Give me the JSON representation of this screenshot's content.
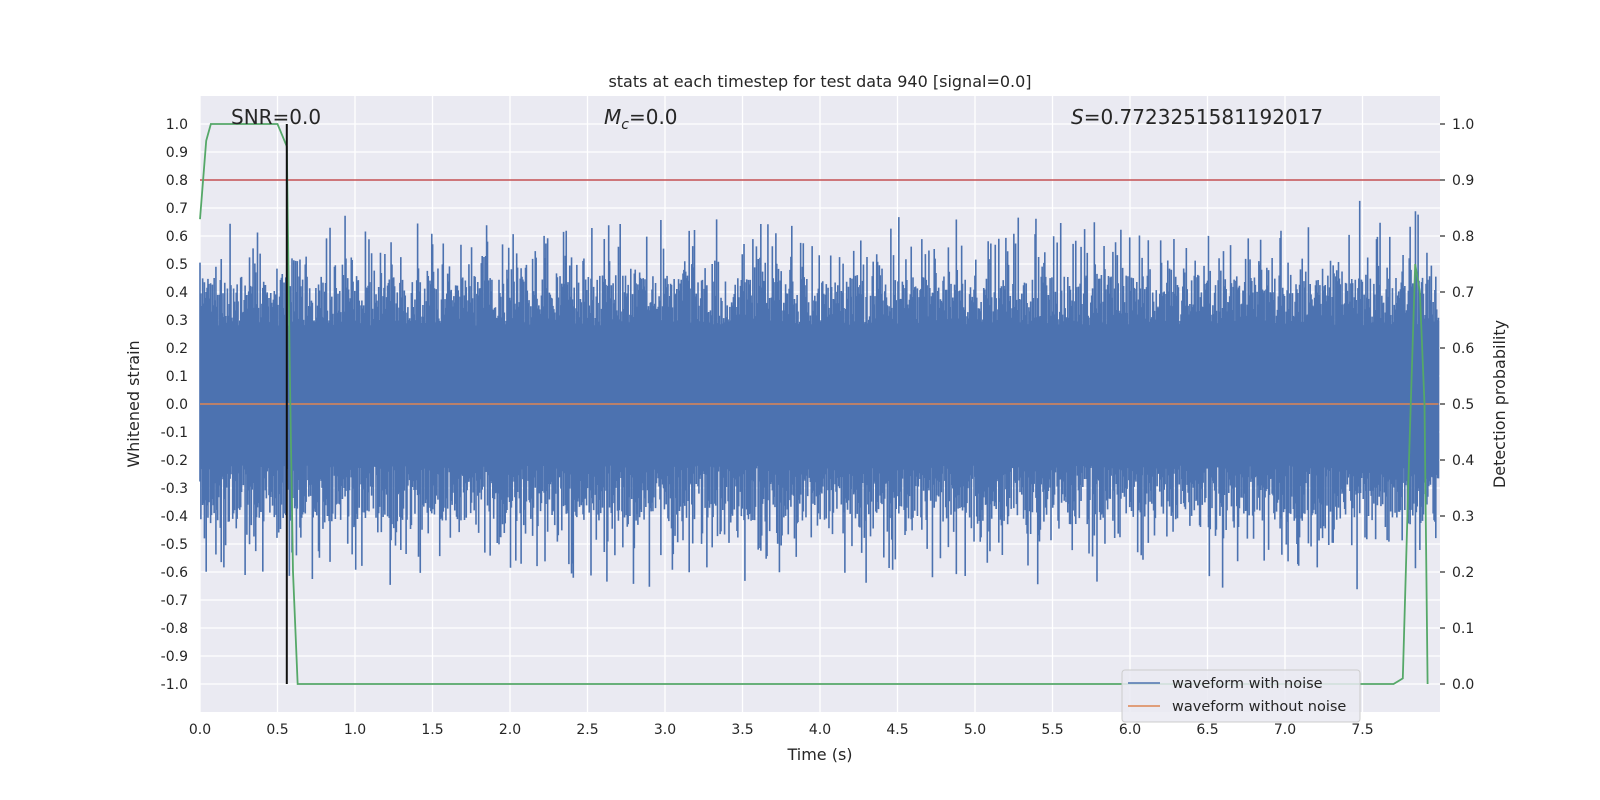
{
  "chart_data": {
    "type": "line",
    "title": "stats at each timestep for test data 940 [signal=0.0]",
    "xlabel": "Time (s)",
    "ylabel": "Whitened strain",
    "ylabel_right": "Detection probability",
    "xlim": [
      0.0,
      8.0
    ],
    "ylim": [
      -1.1,
      1.1
    ],
    "ylim_right": [
      -0.05,
      1.05
    ],
    "xticks": [
      "0.0",
      "0.5",
      "1.0",
      "1.5",
      "2.0",
      "2.5",
      "3.0",
      "3.5",
      "4.0",
      "4.5",
      "5.0",
      "5.5",
      "6.0",
      "6.5",
      "7.0",
      "7.5"
    ],
    "yticks": [
      "1.0",
      "0.9",
      "0.8",
      "0.7",
      "0.6",
      "0.5",
      "0.4",
      "0.3",
      "0.2",
      "0.1",
      "0.0",
      "-0.1",
      "-0.2",
      "-0.3",
      "-0.4",
      "-0.5",
      "-0.6",
      "-0.7",
      "-0.8",
      "-0.9",
      "-1.0"
    ],
    "yticks_right": [
      "1.0",
      "0.9",
      "0.8",
      "0.7",
      "0.6",
      "0.5",
      "0.4",
      "0.3",
      "0.2",
      "0.1",
      "0.0"
    ],
    "grid": true,
    "legend_position": "bottom-right",
    "annotations": {
      "snr": "SNR=0.0",
      "mc": "=0.0",
      "mc_symbol": "M",
      "mc_subscript": "c",
      "s": "=0.7723251581192017",
      "s_symbol": "S"
    },
    "series": [
      {
        "name": "waveform with noise",
        "color": "#4c72b0",
        "axis": "left",
        "style": "noise-strain"
      },
      {
        "name": "waveform without noise",
        "color": "#dd8452",
        "axis": "left",
        "values": [
          0.0,
          0.0
        ]
      },
      {
        "color": "#55a868",
        "axis": "right",
        "x": [
          0.0,
          0.04,
          0.07,
          0.12,
          0.25,
          0.4,
          0.5,
          0.53,
          0.56,
          0.58,
          0.6,
          0.63,
          0.7,
          1.0,
          2.0,
          3.0,
          4.0,
          5.0,
          6.0,
          7.0,
          7.5,
          7.7,
          7.76,
          7.8,
          7.84,
          7.87,
          7.9,
          7.92
        ],
        "y": [
          0.83,
          0.97,
          1.0,
          1.0,
          1.0,
          1.0,
          1.0,
          0.98,
          0.96,
          0.55,
          0.2,
          0.0,
          0.0,
          0.0,
          0.0,
          0.0,
          0.0,
          0.0,
          0.0,
          0.0,
          0.0,
          0.0,
          0.01,
          0.4,
          0.75,
          0.7,
          0.5,
          0.0
        ]
      }
    ],
    "threshold": {
      "value": 0.9,
      "axis": "right",
      "color": "#c44e52"
    },
    "vertical_marker": {
      "x": 0.56,
      "ymin": -1.0,
      "ymax": 1.0,
      "color": "#111111"
    }
  }
}
